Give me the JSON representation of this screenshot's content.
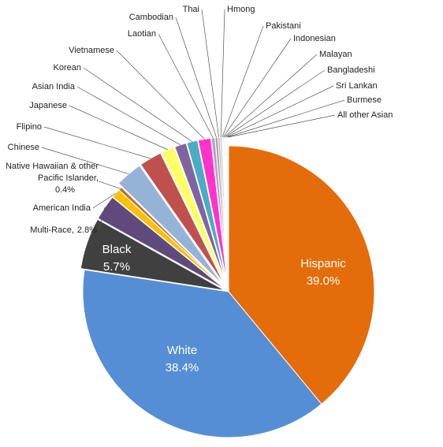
{
  "chart_data": {
    "type": "pie",
    "categories": [
      "Hispanic",
      "White",
      "Black",
      "Multi-Race,",
      "American India",
      "Native Hawaiian & other Pacific Islander,",
      "Chinese",
      "Flipino",
      "Japanese",
      "Asian India",
      "Korean",
      "Vietnamese",
      "Laotian",
      "Cambodian",
      "Thai",
      "Hmong",
      "Pakistani",
      "Indonesian",
      "Malayan",
      "Bangladeshi",
      "Sri Lankan",
      "Burmese",
      "All other Asian"
    ],
    "values": [
      39.0,
      38.4,
      5.7,
      2.8,
      1.0,
      0.4,
      3.0,
      2.5,
      1.5,
      1.3,
      1.2,
      1.4,
      0.4,
      0.3,
      0.2,
      0.2,
      0.1,
      0.1,
      0.1,
      0.1,
      0.1,
      0.1,
      0.1
    ],
    "value_labels": [
      "39.0%",
      "38.4%",
      "5.7%",
      "2.8%",
      null,
      "0.4%",
      null,
      null,
      null,
      null,
      null,
      null,
      null,
      null,
      null,
      null,
      null,
      null,
      null,
      null,
      null,
      null,
      null
    ],
    "colors": [
      "#e46c0a",
      "#558ed5",
      "#404040",
      "#604a7b",
      "#ffc000",
      "#c0712f",
      "#95b3d7",
      "#c0504d",
      "#ffff66",
      "#8064a2",
      "#4bacc6",
      "#ff33cc",
      "#b7a3c9",
      "#a5a5a5",
      "#d99694",
      "#93cddd",
      "#c3d69b",
      "#fac090",
      "#7f7f7f",
      "#b9cde5",
      "#e6b9b8",
      "#ccc1da",
      "#dbeef4"
    ]
  }
}
